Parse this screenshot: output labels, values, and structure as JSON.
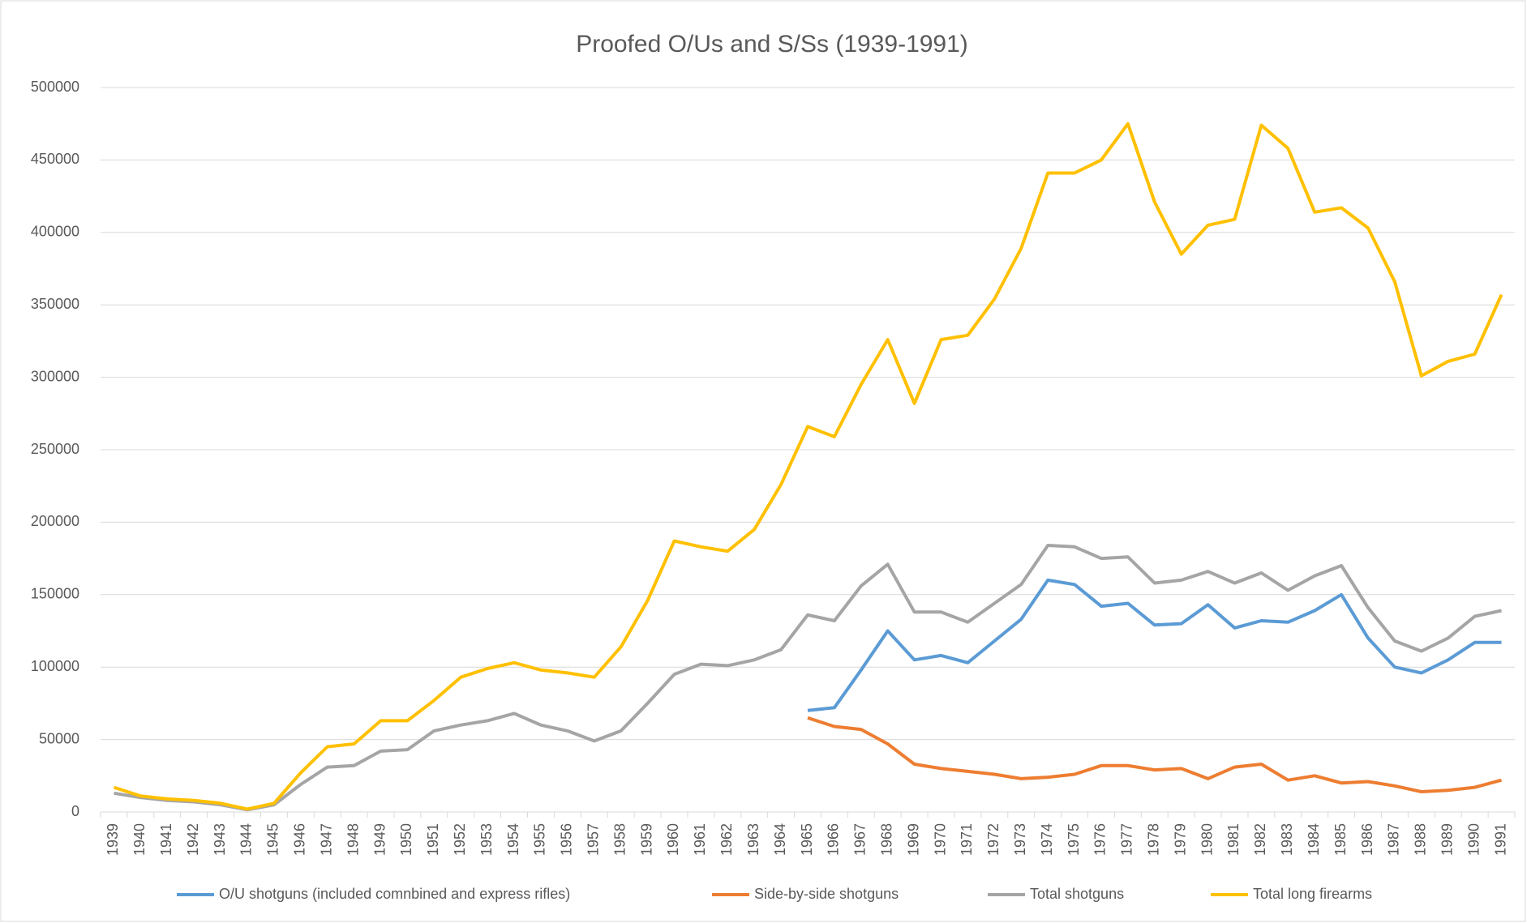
{
  "chart_data": {
    "type": "line",
    "title": "Proofed O/Us and S/Ss (1939-1991)",
    "categories": [
      "1939",
      "1940",
      "1941",
      "1942",
      "1943",
      "1944",
      "1945",
      "1946",
      "1947",
      "1948",
      "1949",
      "1950",
      "1951",
      "1952",
      "1953",
      "1954",
      "1955",
      "1956",
      "1957",
      "1958",
      "1959",
      "1960",
      "1961",
      "1962",
      "1963",
      "1964",
      "1965",
      "1966",
      "1967",
      "1968",
      "1969",
      "1970",
      "1971",
      "1972",
      "1973",
      "1974",
      "1975",
      "1976",
      "1977",
      "1978",
      "1979",
      "1980",
      "1981",
      "1982",
      "1983",
      "1984",
      "1985",
      "1986",
      "1987",
      "1988",
      "1989",
      "1990",
      "1991"
    ],
    "series": [
      {
        "name": "O/U shotguns (included comnbined and express rifles)",
        "color": "#5b9bd5",
        "values": [
          null,
          null,
          null,
          null,
          null,
          null,
          null,
          null,
          null,
          null,
          null,
          null,
          null,
          null,
          null,
          null,
          null,
          null,
          null,
          null,
          null,
          null,
          null,
          null,
          null,
          null,
          70000,
          72000,
          98000,
          125000,
          105000,
          108000,
          103000,
          118000,
          133000,
          160000,
          157000,
          142000,
          144000,
          129000,
          130000,
          143000,
          127000,
          132000,
          131000,
          139000,
          150000,
          120000,
          100000,
          96000,
          105000,
          117000,
          117000
        ]
      },
      {
        "name": "Side-by-side shotguns",
        "color": "#ed7d31",
        "values": [
          null,
          null,
          null,
          null,
          null,
          null,
          null,
          null,
          null,
          null,
          null,
          null,
          null,
          null,
          null,
          null,
          null,
          null,
          null,
          null,
          null,
          null,
          null,
          null,
          null,
          null,
          65000,
          59000,
          57000,
          47000,
          33000,
          30000,
          28000,
          26000,
          23000,
          24000,
          26000,
          32000,
          32000,
          29000,
          30000,
          23000,
          31000,
          33000,
          22000,
          25000,
          20000,
          21000,
          18000,
          14000,
          15000,
          17000,
          22000
        ]
      },
      {
        "name": "Total shotguns",
        "color": "#a5a5a5",
        "values": [
          13000,
          10000,
          8000,
          7000,
          5000,
          1500,
          5000,
          19000,
          31000,
          32000,
          42000,
          43000,
          56000,
          60000,
          63000,
          68000,
          60000,
          56000,
          49000,
          56000,
          75000,
          95000,
          102000,
          101000,
          105000,
          112000,
          136000,
          132000,
          156000,
          171000,
          138000,
          138000,
          131000,
          144000,
          157000,
          184000,
          183000,
          175000,
          176000,
          158000,
          160000,
          166000,
          158000,
          165000,
          153000,
          163000,
          170000,
          141000,
          118000,
          111000,
          120000,
          135000,
          139000
        ]
      },
      {
        "name": "Total long firearms",
        "color": "#ffc000",
        "values": [
          17000,
          11000,
          9000,
          8000,
          6000,
          2000,
          6000,
          27000,
          45000,
          47000,
          63000,
          63000,
          77000,
          93000,
          99000,
          103000,
          98000,
          96000,
          93000,
          114000,
          146000,
          187000,
          183000,
          180000,
          195000,
          226000,
          266000,
          259000,
          295000,
          326000,
          282000,
          326000,
          329000,
          354000,
          389000,
          441000,
          441000,
          450000,
          475000,
          421000,
          385000,
          405000,
          409000,
          474000,
          458000,
          414000,
          417000,
          403000,
          366000,
          301000,
          311000,
          316000,
          357000
        ]
      }
    ],
    "ylim": [
      0,
      500000
    ],
    "yticks": [
      0,
      50000,
      100000,
      150000,
      200000,
      250000,
      300000,
      350000,
      400000,
      450000,
      500000
    ],
    "grid": true,
    "legend": "bottom"
  }
}
